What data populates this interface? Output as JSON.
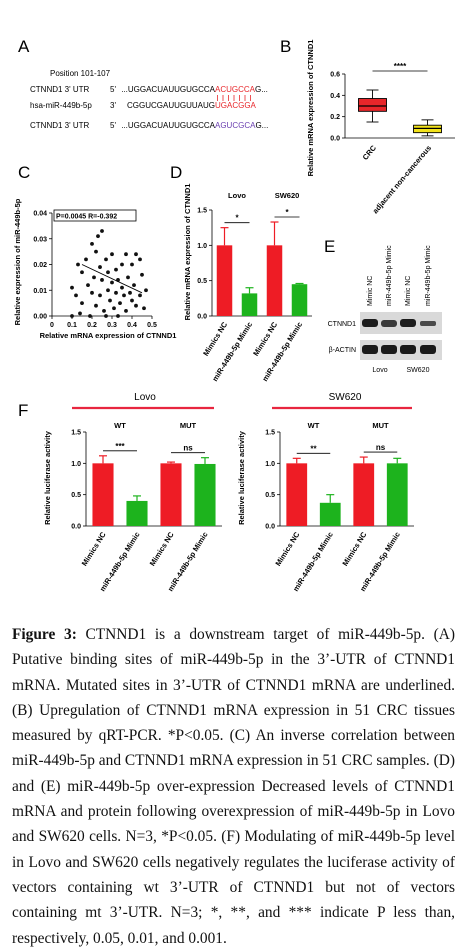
{
  "panels": {
    "a": {
      "label": "A",
      "position": "Position 101-107",
      "rows": [
        {
          "name": "CTNND1 3' UTR",
          "end": "5'",
          "seq": "...UGGACUAUUGUGCCA",
          "site": "ACUGCCA",
          "site_color": "#e8262a",
          "tail": "G..."
        },
        {
          "name": "hsa-miR-449b-5p",
          "end": "3'",
          "seq": "CGGUCGAUUGUUAUG",
          "site": "UGACGGA",
          "site_color": "#e8262a"
        },
        {
          "name": "CTNND1 3' UTR",
          "end": "5'",
          "seq": "...UGGACUAUUGUGCCA",
          "site": "AGUCGCA",
          "site_color": "#6a3fb0",
          "tail": "G..."
        }
      ]
    },
    "b": {
      "label": "B"
    },
    "c": {
      "label": "C"
    },
    "d": {
      "label": "D"
    },
    "e": {
      "label": "E",
      "lanes": [
        "Mimic NC",
        "miR-449b-5p Mimic",
        "Mimic NC",
        "miR-449b-5p Mimic"
      ],
      "proteins": [
        "CTNND1",
        "β-ACTIN"
      ],
      "groups": [
        "Lovo",
        "SW620"
      ]
    },
    "f": {
      "label": "F"
    }
  },
  "chart_data": [
    {
      "type": "box",
      "y_label": "Relative mRNA expression of CTNND1",
      "categories": [
        "CRC",
        "adjacent non-cancerous"
      ],
      "colors": [
        "#e8262a",
        "#f2e21b"
      ],
      "boxes": [
        {
          "min": 0.15,
          "q1": 0.25,
          "median": 0.3,
          "q3": 0.37,
          "max": 0.45
        },
        {
          "min": 0.02,
          "q1": 0.05,
          "median": 0.09,
          "q3": 0.12,
          "max": 0.17
        }
      ],
      "significance": "****",
      "ylim": [
        0,
        0.6
      ],
      "yticks": [
        {
          "value": 0,
          "label": "0.0"
        },
        0.2,
        0.4,
        0.6
      ]
    },
    {
      "type": "scatter",
      "y_label": "Relative expression of miR-449b-5p",
      "x_label": "Relative mRNA expression of CTNND1",
      "annotation": "P=0.0045  R=-0.392",
      "color": "#111111",
      "x": [
        0.1,
        0.12,
        0.13,
        0.15,
        0.15,
        0.17,
        0.18,
        0.2,
        0.2,
        0.21,
        0.22,
        0.22,
        0.23,
        0.24,
        0.24,
        0.25,
        0.25,
        0.26,
        0.27,
        0.28,
        0.28,
        0.29,
        0.3,
        0.3,
        0.31,
        0.32,
        0.32,
        0.33,
        0.34,
        0.35,
        0.35,
        0.36,
        0.37,
        0.37,
        0.38,
        0.39,
        0.4,
        0.4,
        0.41,
        0.42,
        0.42,
        0.44,
        0.45,
        0.46,
        0.47,
        0.14,
        0.19,
        0.33,
        0.44,
        0.27,
        0.1
      ],
      "y": [
        0.011,
        0.008,
        0.02,
        0.005,
        0.017,
        0.022,
        0.012,
        0.028,
        0.009,
        0.015,
        0.025,
        0.004,
        0.031,
        0.019,
        0.008,
        0.033,
        0.014,
        0.002,
        0.022,
        0.01,
        0.017,
        0.006,
        0.013,
        0.024,
        0.003,
        0.009,
        0.018,
        0.014,
        0.005,
        0.02,
        0.011,
        0.008,
        0.024,
        0.002,
        0.015,
        0.009,
        0.006,
        0.02,
        0.012,
        0.024,
        0.004,
        0.008,
        0.016,
        0.003,
        0.01,
        0.001,
        0,
        0,
        0.022,
        0,
        0
      ],
      "trendline": {
        "x": [
          0.15,
          0.45
        ],
        "y": [
          0.02,
          0.009
        ]
      },
      "xlim": [
        0,
        0.5
      ],
      "xticks": [
        0,
        0.1,
        0.2,
        0.3,
        0.4,
        0.5
      ],
      "ylim": [
        0,
        0.04
      ],
      "yticks": [
        {
          "value": 0,
          "label": "0.00"
        },
        {
          "value": 0.01,
          "label": "0.01"
        },
        {
          "value": 0.02,
          "label": "0.02"
        },
        {
          "value": 0.03,
          "label": "0.03"
        },
        {
          "value": 0.04,
          "label": "0.04"
        }
      ]
    },
    {
      "type": "bar",
      "y_label": "Relative mRNA expression of CTNND1",
      "groups": [
        "Lovo",
        "SW620"
      ],
      "categories": [
        "Mimics NC",
        "miR-449b-5p Mimic",
        "Mimics NC",
        "miR-449b-5p Mimic"
      ],
      "values": [
        1.0,
        0.32,
        1.0,
        0.45
      ],
      "errors": [
        0.25,
        0.08,
        0.33,
        0.01
      ],
      "colors": [
        "#ee1c25",
        "#1db31d",
        "#ee1c25",
        "#1db31d"
      ],
      "significance": [
        "*",
        "*"
      ],
      "ylim": [
        0,
        1.5
      ],
      "yticks": [
        {
          "value": 0,
          "label": "0.0"
        },
        0.5,
        {
          "value": 1,
          "label": "1.0"
        },
        1.5
      ]
    },
    {
      "type": "bar",
      "title": "Lovo",
      "y_label": "Relative luciferase activity",
      "groups": [
        "WT",
        "MUT"
      ],
      "categories": [
        "Mimics NC",
        "miR-449b-5p Mimic",
        "Mimics NC",
        "miR-449b-5p Mimic"
      ],
      "values": [
        1.0,
        0.4,
        1.0,
        0.99
      ],
      "errors": [
        0.12,
        0.08,
        0.02,
        0.1
      ],
      "colors": [
        "#ee1c25",
        "#1db31d",
        "#ee1c25",
        "#1db31d"
      ],
      "significance": [
        "***",
        "ns"
      ],
      "ylim": [
        0,
        1.5
      ],
      "yticks": [
        {
          "value": 0,
          "label": "0.0"
        },
        0.5,
        {
          "value": 1,
          "label": "1.0"
        },
        1.5
      ]
    },
    {
      "type": "bar",
      "title": "SW620",
      "y_label": "Relative luciferase activity",
      "groups": [
        "WT",
        "MUT"
      ],
      "categories": [
        "Mimics NC",
        "miR-449b-5p Mimic",
        "Mimics NC",
        "miR-449b-5p Mimic"
      ],
      "values": [
        1.0,
        0.37,
        1.0,
        1.0
      ],
      "errors": [
        0.08,
        0.13,
        0.1,
        0.08
      ],
      "colors": [
        "#ee1c25",
        "#1db31d",
        "#ee1c25",
        "#1db31d"
      ],
      "significance": [
        "**",
        "ns"
      ],
      "ylim": [
        0,
        1.5
      ],
      "yticks": [
        {
          "value": 0,
          "label": "0.0"
        },
        0.5,
        {
          "value": 1,
          "label": "1.0"
        },
        1.5
      ]
    }
  ],
  "caption": {
    "label": "Figure 3:",
    "text": "CTNND1 is a downstream target of miR-449b-5p. (A) Putative binding sites of miR-449b-5p in the 3’-UTR of CTNND1 mRNA. Mutated sites in 3’-UTR of CTNND1 mRNA are underlined. (B) Upregulation of CTNND1 mRNA expression in 51 CRC tissues measured by qRT-PCR. *P<0.05. (C) An inverse correlation between miR-449b-5p and CTNND1 mRNA expression in 51 CRC samples. (D) and (E) miR-449b-5p over-expression Decreased levels of CTNND1 mRNA and protein following overexpression of miR-449b-5p in Lovo and SW620 cells. N=3, *P<0.05. (F) Modulating of miR-449b-5p level in Lovo and SW620 cells negatively regulates the luciferase activity of vectors containing wt 3’-UTR of CTNND1 but not of vectors containing mt 3’-UTR. N=3; *, **, and *** indicate P less than, respectively, 0.05, 0.01, and 0.001."
  }
}
